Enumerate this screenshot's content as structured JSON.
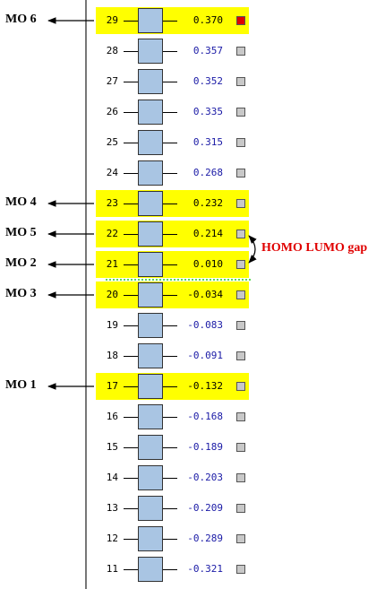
{
  "colors": {
    "highlight": "#ffff00",
    "box_fill": "#a9c5e3",
    "energy_highlight": "#000000",
    "energy_plain": "#1a1aa6",
    "spin_arrow": "#e00000",
    "gap_line": "#22cc22",
    "gap_label": "#e00000",
    "square_selected": "#e00000",
    "square_default": "#c8c8c8"
  },
  "gap_label": "HOMO LUMO gap",
  "orbitals": [
    {
      "index": "29",
      "energy": "0.370",
      "occupied": false,
      "highlighted": true,
      "label": "MO 6",
      "selected": true
    },
    {
      "index": "28",
      "energy": "0.357",
      "occupied": false,
      "highlighted": false,
      "label": "",
      "selected": false
    },
    {
      "index": "27",
      "energy": "0.352",
      "occupied": false,
      "highlighted": false,
      "label": "",
      "selected": false
    },
    {
      "index": "26",
      "energy": "0.335",
      "occupied": false,
      "highlighted": false,
      "label": "",
      "selected": false
    },
    {
      "index": "25",
      "energy": "0.315",
      "occupied": false,
      "highlighted": false,
      "label": "",
      "selected": false
    },
    {
      "index": "24",
      "energy": "0.268",
      "occupied": false,
      "highlighted": false,
      "label": "",
      "selected": false
    },
    {
      "index": "23",
      "energy": "0.232",
      "occupied": false,
      "highlighted": true,
      "label": "MO 4",
      "selected": false
    },
    {
      "index": "22",
      "energy": "0.214",
      "occupied": false,
      "highlighted": true,
      "label": "MO 5",
      "selected": false
    },
    {
      "index": "21",
      "energy": "0.010",
      "occupied": true,
      "highlighted": true,
      "label": "MO 2",
      "selected": false
    },
    {
      "index": "20",
      "energy": "-0.034",
      "occupied": true,
      "highlighted": true,
      "label": "MO 3",
      "selected": false
    },
    {
      "index": "19",
      "energy": "-0.083",
      "occupied": true,
      "highlighted": false,
      "label": "",
      "selected": false
    },
    {
      "index": "18",
      "energy": "-0.091",
      "occupied": true,
      "highlighted": false,
      "label": "",
      "selected": false
    },
    {
      "index": "17",
      "energy": "-0.132",
      "occupied": true,
      "highlighted": true,
      "label": "MO 1",
      "selected": false
    },
    {
      "index": "16",
      "energy": "-0.168",
      "occupied": true,
      "highlighted": false,
      "label": "",
      "selected": false
    },
    {
      "index": "15",
      "energy": "-0.189",
      "occupied": true,
      "highlighted": false,
      "label": "",
      "selected": false
    },
    {
      "index": "14",
      "energy": "-0.203",
      "occupied": true,
      "highlighted": false,
      "label": "",
      "selected": false
    },
    {
      "index": "13",
      "energy": "-0.209",
      "occupied": true,
      "highlighted": false,
      "label": "",
      "selected": false
    },
    {
      "index": "12",
      "energy": "-0.289",
      "occupied": true,
      "highlighted": false,
      "label": "",
      "selected": false
    },
    {
      "index": "11",
      "energy": "-0.321",
      "occupied": true,
      "highlighted": false,
      "label": "",
      "selected": false
    }
  ]
}
